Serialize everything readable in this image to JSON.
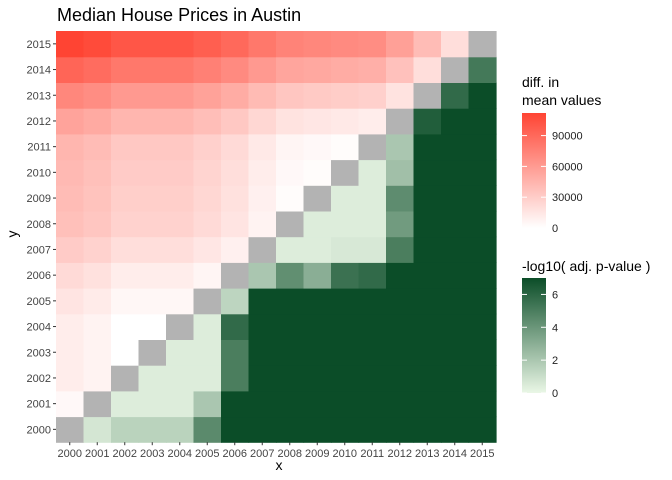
{
  "chart_data": {
    "type": "heatmap",
    "title": "Median House Prices in Austin",
    "xlabel": "x",
    "ylabel": "y",
    "years": [
      "2000",
      "2001",
      "2002",
      "2003",
      "2004",
      "2005",
      "2006",
      "2007",
      "2008",
      "2009",
      "2010",
      "2011",
      "2012",
      "2013",
      "2014",
      "2015"
    ],
    "legend_diff": {
      "title_lines": [
        "diff. in",
        "mean values"
      ],
      "breaks": [
        0,
        30000,
        60000,
        90000
      ],
      "break_labels": [
        "0",
        "30000",
        "60000",
        "90000"
      ],
      "limits": [
        0,
        112000
      ],
      "color_low": "#ffffff",
      "color_high": "#ff4433"
    },
    "legend_pval": {
      "title": "-log10( adj. p-value )",
      "breaks": [
        0,
        2,
        4,
        6
      ],
      "break_labels": [
        "0",
        "2",
        "4",
        "6"
      ],
      "limits": [
        0,
        7
      ],
      "color_low": "#eaf7e6",
      "color_high": "#0b4d28"
    },
    "diagonal_color": "#b3b3b3",
    "prices": [
      0,
      4000,
      11000,
      11000,
      11000,
      16000,
      22000,
      31000,
      38000,
      40000,
      42000,
      44000,
      55000,
      72000,
      92000,
      112000
    ],
    "pvalues": [
      [
        0,
        0.7,
        1.5,
        1.5,
        1.5,
        4.5,
        7.0,
        7.0,
        7.0,
        7.0,
        7.0,
        7.0,
        7.0,
        7.0,
        7.0,
        7.0
      ],
      [
        0.7,
        0,
        0.4,
        0.4,
        0.4,
        2.0,
        7.0,
        7.0,
        7.0,
        7.0,
        7.0,
        7.0,
        7.0,
        7.0,
        7.0,
        7.0
      ],
      [
        1.5,
        0.4,
        0,
        0.4,
        0.4,
        0.4,
        5.0,
        7.0,
        7.0,
        7.0,
        7.0,
        7.0,
        7.0,
        7.0,
        7.0,
        7.0
      ],
      [
        1.5,
        0.4,
        0.4,
        0,
        0.4,
        0.4,
        5.0,
        7.0,
        7.0,
        7.0,
        7.0,
        7.0,
        7.0,
        7.0,
        7.0,
        7.0
      ],
      [
        1.5,
        0.4,
        0.4,
        0.4,
        0,
        0.4,
        5.8,
        7.0,
        7.0,
        7.0,
        7.0,
        7.0,
        7.0,
        7.0,
        7.0,
        7.0
      ],
      [
        4.5,
        2.0,
        0.4,
        0.4,
        0.4,
        0,
        1.4,
        7.0,
        7.0,
        7.0,
        7.0,
        7.0,
        7.0,
        7.0,
        7.0,
        7.0
      ],
      [
        7.0,
        7.0,
        5.0,
        5.0,
        5.8,
        1.4,
        0,
        2.0,
        4.3,
        3.0,
        5.5,
        5.8,
        7.0,
        7.0,
        7.0,
        7.0
      ],
      [
        7.0,
        7.0,
        7.0,
        7.0,
        7.0,
        7.0,
        2.0,
        0,
        0.4,
        0.4,
        0.6,
        0.6,
        5.0,
        7.0,
        7.0,
        7.0
      ],
      [
        7.0,
        7.0,
        7.0,
        7.0,
        7.0,
        7.0,
        4.3,
        0.4,
        0,
        0.4,
        0.4,
        0.4,
        3.8,
        7.0,
        7.0,
        7.0
      ],
      [
        7.0,
        7.0,
        7.0,
        7.0,
        7.0,
        7.0,
        3.0,
        0.4,
        0.4,
        0,
        0.4,
        0.4,
        4.4,
        7.0,
        7.0,
        7.0
      ],
      [
        7.0,
        7.0,
        7.0,
        7.0,
        7.0,
        7.0,
        5.5,
        0.6,
        0.4,
        0.4,
        0,
        0.4,
        2.3,
        7.0,
        7.0,
        7.0
      ],
      [
        7.0,
        7.0,
        7.0,
        7.0,
        7.0,
        7.0,
        5.8,
        0.6,
        0.4,
        0.4,
        0.4,
        0,
        2.0,
        7.0,
        7.0,
        7.0
      ],
      [
        7.0,
        7.0,
        7.0,
        7.0,
        7.0,
        7.0,
        7.0,
        5.0,
        3.8,
        4.4,
        2.3,
        2.0,
        0,
        6.3,
        7.0,
        7.0
      ],
      [
        7.0,
        7.0,
        7.0,
        7.0,
        7.0,
        7.0,
        7.0,
        7.0,
        7.0,
        7.0,
        7.0,
        7.0,
        6.3,
        0,
        5.8,
        7.0
      ],
      [
        7.0,
        7.0,
        7.0,
        7.0,
        7.0,
        7.0,
        7.0,
        7.0,
        7.0,
        7.0,
        7.0,
        7.0,
        7.0,
        5.8,
        0,
        5.2
      ],
      [
        7.0,
        7.0,
        7.0,
        7.0,
        7.0,
        7.0,
        7.0,
        7.0,
        7.0,
        7.0,
        7.0,
        7.0,
        7.0,
        7.0,
        5.2,
        0
      ]
    ],
    "grid": false,
    "legend_position": "right"
  }
}
